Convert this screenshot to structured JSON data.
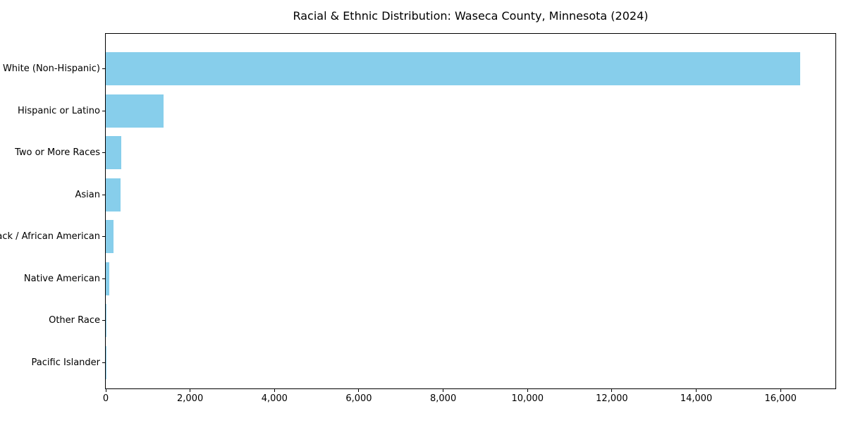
{
  "figure": {
    "title": "Racial & Ethnic Distribution: Waseca County, Minnesota (2024)"
  },
  "chart_data": {
    "type": "bar",
    "orientation": "horizontal",
    "title": "Racial & Ethnic Distribution: Waseca County, Minnesota (2024)",
    "xlabel": "",
    "ylabel": "",
    "categories": [
      "White (Non-Hispanic)",
      "Hispanic or Latino",
      "Two or More Races",
      "Asian",
      "Black / African American",
      "Native American",
      "Other Race",
      "Pacific Islander"
    ],
    "values": [
      16470,
      1370,
      360,
      345,
      185,
      85,
      25,
      5
    ],
    "xlim": [
      0,
      17300
    ],
    "xticks": [
      0,
      2000,
      4000,
      6000,
      8000,
      10000,
      12000,
      14000,
      16000
    ],
    "xtick_labels": [
      "0",
      "2,000",
      "4,000",
      "6,000",
      "8,000",
      "10,000",
      "12,000",
      "14,000",
      "16,000"
    ],
    "bar_color": "#87CEEB",
    "frame_color": "#000000",
    "background_color": "#ffffff",
    "grid": false,
    "legend": null
  }
}
